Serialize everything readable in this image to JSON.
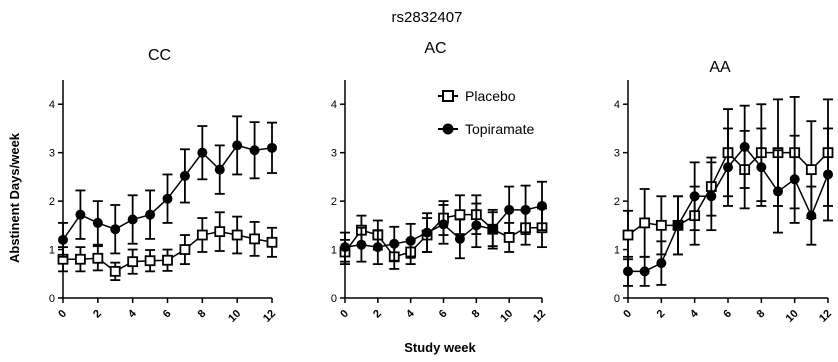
{
  "figure": {
    "title": "rs2832407",
    "xlabel": "Study week",
    "ylabel": "Abstinent Days/week"
  },
  "legend": {
    "items": [
      {
        "label": "Placebo",
        "marker": "open-square"
      },
      {
        "label": "Topiramate",
        "marker": "filled-circle"
      }
    ],
    "placement": "top-right of middle panel"
  },
  "colors": {
    "line": "#000000",
    "placebo_fill": "#ffffff",
    "topiramate_fill": "#000000"
  },
  "chart_data": [
    {
      "type": "line",
      "title": "CC",
      "xlabel": "Study week",
      "ylabel": "Abstinent Days/week",
      "xlim": [
        0,
        12
      ],
      "ylim": [
        0,
        4.5
      ],
      "xticks": [
        0,
        2,
        4,
        6,
        8,
        10,
        12
      ],
      "yticks": [
        0,
        1,
        2,
        3,
        4
      ],
      "x": [
        0,
        1,
        2,
        3,
        4,
        5,
        6,
        7,
        8,
        9,
        10,
        11,
        12
      ],
      "series": [
        {
          "name": "Placebo",
          "marker": "open-square",
          "values": [
            0.8,
            0.8,
            0.82,
            0.55,
            0.75,
            0.77,
            0.78,
            1.0,
            1.3,
            1.37,
            1.3,
            1.22,
            1.15
          ],
          "errors": [
            0.25,
            0.25,
            0.25,
            0.18,
            0.25,
            0.22,
            0.22,
            0.3,
            0.35,
            0.4,
            0.38,
            0.35,
            0.3
          ]
        },
        {
          "name": "Topiramate",
          "marker": "filled-circle",
          "values": [
            1.2,
            1.72,
            1.55,
            1.42,
            1.62,
            1.72,
            2.05,
            2.52,
            3.0,
            2.65,
            3.15,
            3.05,
            3.1
          ],
          "errors": [
            0.35,
            0.5,
            0.45,
            0.5,
            0.5,
            0.5,
            0.5,
            0.55,
            0.55,
            0.5,
            0.6,
            0.58,
            0.52
          ]
        }
      ]
    },
    {
      "type": "line",
      "title": "AC",
      "xlabel": "Study week",
      "ylabel": "",
      "xlim": [
        0,
        12
      ],
      "ylim": [
        0,
        4.5
      ],
      "xticks": [
        0,
        2,
        4,
        6,
        8,
        10,
        12
      ],
      "yticks": [
        0,
        1,
        2,
        3,
        4
      ],
      "x": [
        0,
        1,
        2,
        3,
        4,
        5,
        6,
        7,
        8,
        9,
        10,
        11,
        12
      ],
      "series": [
        {
          "name": "Placebo",
          "marker": "open-square",
          "values": [
            0.95,
            1.4,
            1.3,
            0.85,
            0.95,
            1.3,
            1.65,
            1.72,
            1.72,
            1.42,
            1.25,
            1.45,
            1.45
          ],
          "errors": [
            0.25,
            0.3,
            0.3,
            0.25,
            0.25,
            0.35,
            0.35,
            0.4,
            0.4,
            0.35,
            0.3,
            0.35,
            0.4
          ]
        },
        {
          "name": "Topiramate",
          "marker": "filled-circle",
          "values": [
            1.05,
            1.1,
            1.05,
            1.12,
            1.18,
            1.35,
            1.52,
            1.22,
            1.5,
            1.42,
            1.82,
            1.82,
            1.9
          ],
          "errors": [
            0.3,
            0.35,
            0.35,
            0.35,
            0.35,
            0.4,
            0.4,
            0.4,
            0.45,
            0.4,
            0.48,
            0.5,
            0.5
          ]
        }
      ]
    },
    {
      "type": "line",
      "title": "AA",
      "xlabel": "Study week",
      "ylabel": "",
      "xlim": [
        0,
        12
      ],
      "ylim": [
        0,
        4.5
      ],
      "xticks": [
        0,
        2,
        4,
        6,
        8,
        10,
        12
      ],
      "yticks": [
        0,
        1,
        2,
        3,
        4
      ],
      "x": [
        0,
        1,
        2,
        3,
        4,
        5,
        6,
        7,
        8,
        9,
        10,
        11,
        12
      ],
      "series": [
        {
          "name": "Placebo",
          "marker": "open-square",
          "values": [
            1.3,
            1.55,
            1.5,
            1.5,
            1.7,
            2.3,
            3.0,
            2.65,
            3.0,
            3.0,
            3.0,
            2.65,
            3.0
          ],
          "errors": [
            0.5,
            0.7,
            0.6,
            0.6,
            0.6,
            0.6,
            0.9,
            0.8,
            1.0,
            1.1,
            1.15,
            1.0,
            1.1
          ]
        },
        {
          "name": "Topiramate",
          "marker": "filled-circle",
          "values": [
            0.55,
            0.55,
            0.72,
            1.5,
            2.1,
            2.1,
            2.7,
            3.12,
            2.7,
            2.2,
            2.45,
            1.7,
            2.55
          ],
          "errors": [
            0.3,
            0.3,
            0.45,
            0.6,
            0.7,
            0.7,
            0.8,
            0.85,
            0.8,
            0.85,
            0.9,
            0.6,
            0.95
          ]
        }
      ]
    }
  ]
}
